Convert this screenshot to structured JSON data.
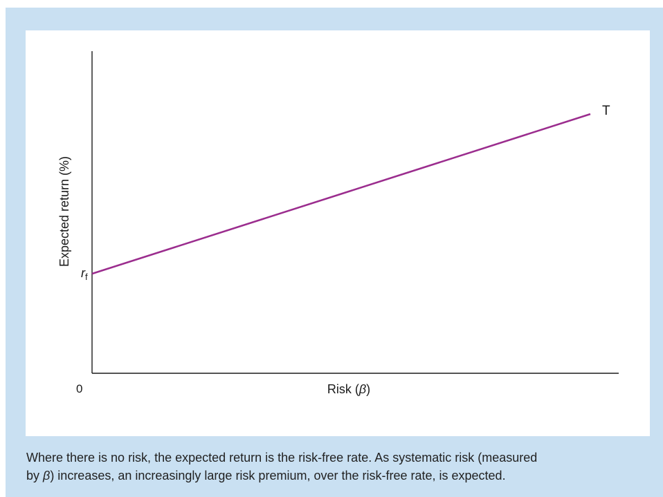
{
  "chart_data": {
    "type": "line",
    "xlabel_text": "Risk (",
    "xlabel_symbol": "β",
    "xlabel_close": ")",
    "ylabel": "Expected return (%)",
    "origin_label": "0",
    "intercept_label_main": "r",
    "intercept_label_sub": "f",
    "series": [
      {
        "name": "T",
        "color": "#9b2d8e"
      }
    ],
    "grid": false,
    "legend": "none",
    "x_ticks": false,
    "y_ticks": false
  },
  "caption": {
    "line1": "Where there is no risk, the expected return is the risk-free rate. As systematic risk (measured",
    "line2_pre": "by ",
    "line2_symbol": "β",
    "line2_post": ") increases, an increasingly large risk premium, over the risk-free rate, is expected."
  },
  "colors": {
    "frame": "#c9e0f2",
    "panel": "#ffffff",
    "line": "#9b2d8e",
    "axis": "#1a1a1a"
  }
}
